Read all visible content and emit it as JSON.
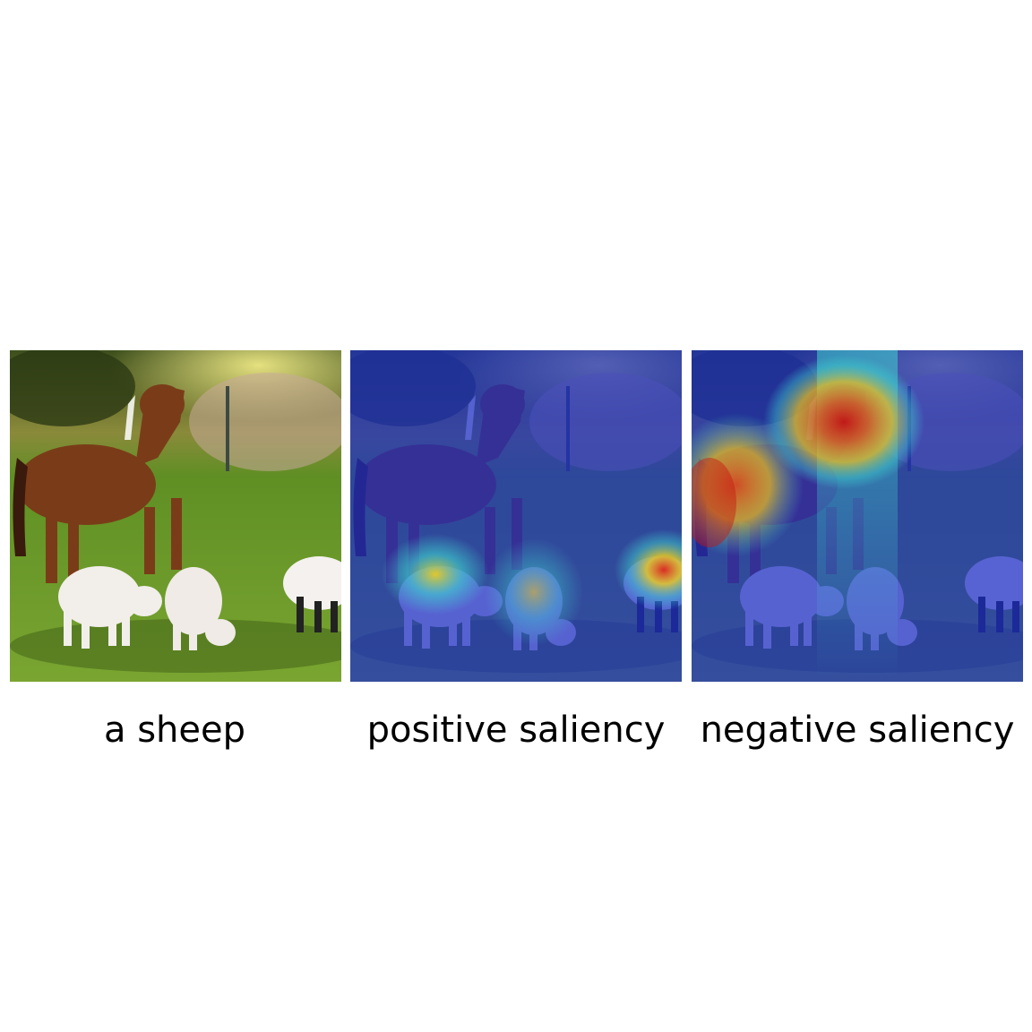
{
  "figure": {
    "panels": [
      {
        "caption": "a sheep"
      },
      {
        "caption": "positive saliency"
      },
      {
        "caption": "negative saliency"
      }
    ]
  },
  "colors": {
    "grass": "#6f9a2a",
    "horse": "#7a3c18",
    "sheep": "#f2eeea",
    "overlay_blue": "#1a2cc8",
    "heat_red": "#e0281c",
    "heat_yellow": "#f2d21a",
    "heat_cyan": "#3ed6d0"
  }
}
